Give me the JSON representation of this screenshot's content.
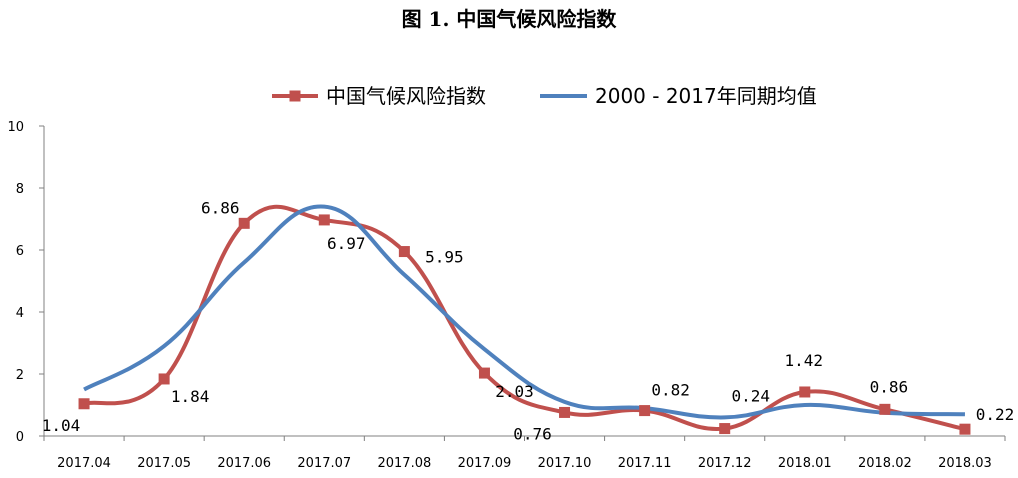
{
  "chart_data": {
    "type": "line",
    "title": "图 1.  中国气候风险指数",
    "categories": [
      "2017.04",
      "2017.05",
      "2017.06",
      "2017.07",
      "2017.08",
      "2017.09",
      "2017.10",
      "2017.11",
      "2017.12",
      "2018.01",
      "2018.02",
      "2018.03"
    ],
    "ylim": [
      0,
      10
    ],
    "yticks": [
      "0",
      "2",
      "4",
      "6",
      "8",
      "10"
    ],
    "legend_position": "top-center",
    "grid": false,
    "series": [
      {
        "name": "中国气候风险指数",
        "color": "#c0504d",
        "marker": "square",
        "values": [
          1.04,
          1.84,
          6.86,
          6.97,
          5.95,
          2.03,
          0.76,
          0.82,
          0.24,
          1.42,
          0.86,
          0.22
        ],
        "labels": [
          "1.04",
          "1.84",
          "6.86",
          "6.97",
          "5.95",
          "2.03",
          "0.76",
          "0.82",
          "0.24",
          "1.42",
          "0.86",
          "0.22"
        ]
      },
      {
        "name": "2000 - 2017年同期均值",
        "color": "#4f81bd",
        "marker": "none",
        "values": [
          1.5,
          2.9,
          5.6,
          7.4,
          5.2,
          2.8,
          1.1,
          0.9,
          0.6,
          1.0,
          0.75,
          0.7
        ]
      }
    ]
  }
}
